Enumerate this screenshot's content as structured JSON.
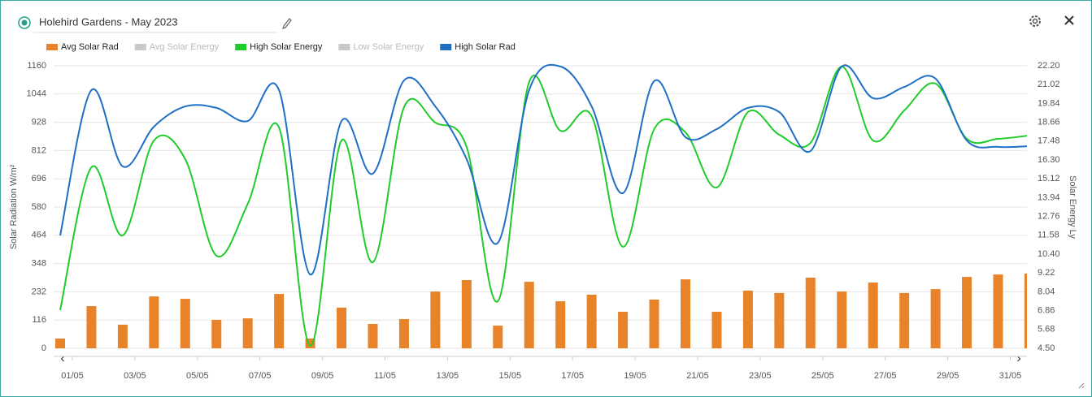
{
  "header": {
    "title": "Holehird Gardens - May 2023"
  },
  "chart_data": {
    "type": "combo",
    "ylabel": "Solar Radiation W/m²",
    "y2label": "Solar Energy Ly",
    "categories": [
      "01/05",
      null,
      "03/05",
      null,
      "05/05",
      null,
      "07/05",
      null,
      "09/05",
      null,
      "11/05",
      null,
      "13/05",
      null,
      "15/05",
      null,
      "17/05",
      null,
      "19/05",
      null,
      "21/05",
      null,
      "23/05",
      null,
      "25/05",
      null,
      "27/05",
      null,
      "29/05",
      null,
      "31/05",
      null
    ],
    "ylim": [
      0,
      1160
    ],
    "yticks": [
      0,
      116,
      232,
      348,
      464,
      580,
      696,
      812,
      928,
      1044,
      1160
    ],
    "y2lim": [
      4.5,
      22.2
    ],
    "y2ticks": [
      {
        "value": 4.5,
        "label": "4.50"
      },
      5.68,
      6.86,
      8.04,
      9.22,
      {
        "value": 10.4,
        "label": "10.40"
      },
      11.58,
      12.76,
      13.94,
      15.12,
      {
        "value": 16.3,
        "label": "16.30"
      },
      17.48,
      18.66,
      19.84,
      21.02,
      {
        "value": 22.2,
        "label": "22.20"
      }
    ],
    "grid": true,
    "series": [
      {
        "name": "Avg Solar Rad",
        "type": "bar",
        "color": "#e8832a",
        "axis": "y",
        "values": [
          40,
          173,
          97,
          213,
          203,
          117,
          123,
          223,
          40,
          167,
          100,
          120,
          233,
          280,
          93,
          273,
          193,
          220,
          150,
          200,
          283,
          150,
          237,
          227,
          290,
          233,
          270,
          227,
          243,
          293,
          303,
          307
        ]
      },
      {
        "name": "Avg Solar Energy",
        "hidden": true,
        "color": "#c8c8c8"
      },
      {
        "name": "High Solar Energy",
        "type": "line",
        "color": "#1fcc2a",
        "axis": "y2",
        "values": [
          6.89,
          15.84,
          11.57,
          17.52,
          16.35,
          10.3,
          13.55,
          18.33,
          4.65,
          17.52,
          9.89,
          19.61,
          18.64,
          17.11,
          7.45,
          21.18,
          18.13,
          19.05,
          10.86,
          18.23,
          18.03,
          14.57,
          19.3,
          17.88,
          17.37,
          22.15,
          17.52,
          19.4,
          21.08,
          17.62,
          17.62,
          17.83
        ]
      },
      {
        "name": "Low Solar Energy",
        "hidden": true,
        "color": "#c8c8c8"
      },
      {
        "name": "High Solar Rad",
        "type": "line",
        "color": "#1f6fc5",
        "axis": "y",
        "values": [
          463,
          1060,
          747,
          910,
          993,
          987,
          933,
          1060,
          303,
          933,
          717,
          1100,
          993,
          777,
          433,
          1060,
          1157,
          993,
          637,
          1097,
          867,
          900,
          987,
          970,
          810,
          1157,
          1027,
          1073,
          1107,
          853,
          827,
          830
        ]
      }
    ]
  }
}
